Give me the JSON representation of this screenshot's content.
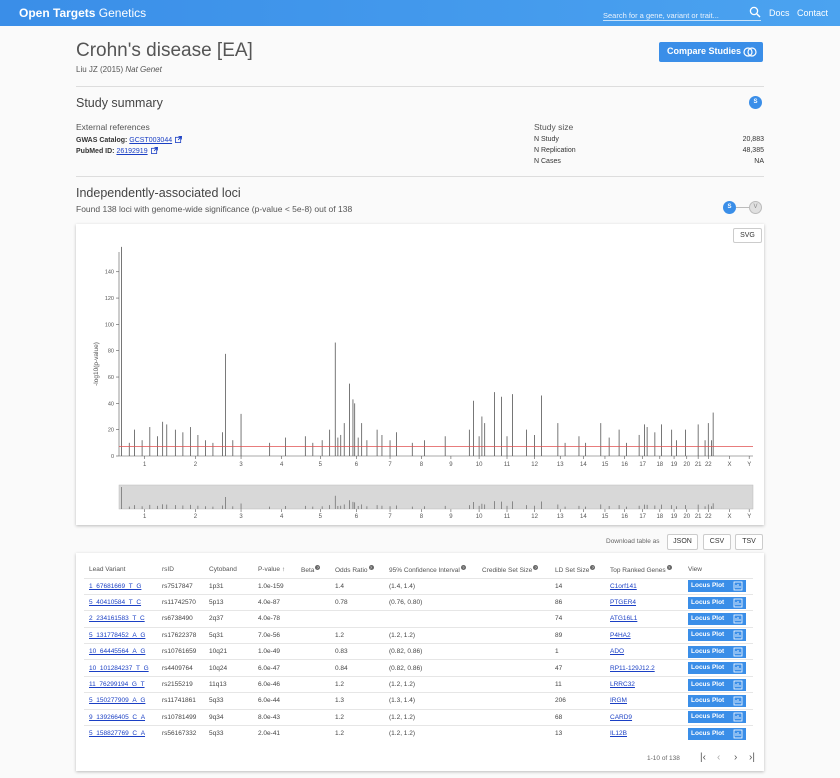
{
  "header": {
    "brand_bold": "Open Targets",
    "brand_light": " Genetics",
    "search_placeholder": "Search for a gene, variant or trait...",
    "nav": [
      "Docs",
      "Contact"
    ]
  },
  "study": {
    "title": "Crohn's disease [EA]",
    "author": "Liu JZ (2015)",
    "journal": "Nat Genet",
    "compare_label": "Compare Studies"
  },
  "summary": {
    "heading": "Study summary",
    "badge": "S",
    "ext_refs_label": "External references",
    "gwas_label": "GWAS Catalog:",
    "gwas_id": "GCST003044",
    "pubmed_label": "PubMed ID:",
    "pubmed_id": "26192919",
    "size_label": "Study size",
    "size_rows": [
      {
        "label": "N Study",
        "value": "20,883"
      },
      {
        "label": "N Replication",
        "value": "48,385"
      },
      {
        "label": "N Cases",
        "value": "NA"
      }
    ]
  },
  "loci": {
    "heading": "Independently-associated loci",
    "subtitle": "Found 138 loci with genome-wide significance (p-value < 5e-8) out of 138",
    "badge_s": "S",
    "badge_v": "V",
    "svg_label": "SVG",
    "download_label": "Download table as",
    "downloads": [
      "JSON",
      "CSV",
      "TSV"
    ]
  },
  "chart_data": {
    "type": "bar",
    "ylabel": "-log10(p-value)",
    "ylim": [
      0,
      155
    ],
    "yticks": [
      0,
      20,
      40,
      60,
      80,
      100,
      120,
      140
    ],
    "threshold": 7.3,
    "xticks": [
      "1",
      "2",
      "3",
      "4",
      "5",
      "6",
      "7",
      "8",
      "9",
      "10",
      "11",
      "12",
      "13",
      "14",
      "15",
      "16",
      "17",
      "18",
      "19",
      "20",
      "21",
      "22",
      "X",
      "Y"
    ],
    "chrom_fraction": [
      0.0,
      0.081,
      0.16,
      0.225,
      0.288,
      0.347,
      0.402,
      0.453,
      0.501,
      0.546,
      0.59,
      0.634,
      0.677,
      0.715,
      0.75,
      0.783,
      0.812,
      0.84,
      0.866,
      0.885,
      0.906,
      0.921,
      0.938,
      0.988,
      1.0
    ],
    "peaks": [
      {
        "chrom": 1,
        "pos": 0.05,
        "value": 158.9
      },
      {
        "chrom": 1,
        "pos": 0.3,
        "value": 20
      },
      {
        "chrom": 1,
        "pos": 0.45,
        "value": 12
      },
      {
        "chrom": 1,
        "pos": 0.6,
        "value": 22
      },
      {
        "chrom": 1,
        "pos": 0.75,
        "value": 15
      },
      {
        "chrom": 1,
        "pos": 0.85,
        "value": 26
      },
      {
        "chrom": 1,
        "pos": 0.93,
        "value": 24
      },
      {
        "chrom": 1,
        "pos": 0.2,
        "value": 10
      },
      {
        "chrom": 2,
        "pos": 0.1,
        "value": 20
      },
      {
        "chrom": 2,
        "pos": 0.25,
        "value": 18
      },
      {
        "chrom": 2,
        "pos": 0.4,
        "value": 22
      },
      {
        "chrom": 2,
        "pos": 0.55,
        "value": 16
      },
      {
        "chrom": 2,
        "pos": 0.7,
        "value": 12
      },
      {
        "chrom": 2,
        "pos": 0.85,
        "value": 10
      },
      {
        "chrom": 3,
        "pos": 0.12,
        "value": 77.6
      },
      {
        "chrom": 3,
        "pos": 0.05,
        "value": 18
      },
      {
        "chrom": 3,
        "pos": 0.3,
        "value": 12
      },
      {
        "chrom": 3,
        "pos": 0.5,
        "value": 32
      },
      {
        "chrom": 4,
        "pos": 0.2,
        "value": 10
      },
      {
        "chrom": 4,
        "pos": 0.6,
        "value": 14
      },
      {
        "chrom": 5,
        "pos": 0.1,
        "value": 15
      },
      {
        "chrom": 5,
        "pos": 0.3,
        "value": 10
      },
      {
        "chrom": 5,
        "pos": 0.55,
        "value": 12
      },
      {
        "chrom": 5,
        "pos": 0.75,
        "value": 20
      },
      {
        "chrom": 5,
        "pos": 0.9,
        "value": 86.2
      },
      {
        "chrom": 5,
        "pos": 0.97,
        "value": 14
      },
      {
        "chrom": 6,
        "pos": 0.05,
        "value": 16
      },
      {
        "chrom": 6,
        "pos": 0.15,
        "value": 25
      },
      {
        "chrom": 6,
        "pos": 0.3,
        "value": 55
      },
      {
        "chrom": 6,
        "pos": 0.4,
        "value": 43
      },
      {
        "chrom": 6,
        "pos": 0.45,
        "value": 40
      },
      {
        "chrom": 6,
        "pos": 0.55,
        "value": 14
      },
      {
        "chrom": 6,
        "pos": 0.65,
        "value": 25
      },
      {
        "chrom": 6,
        "pos": 0.8,
        "value": 12
      },
      {
        "chrom": 7,
        "pos": 0.1,
        "value": 20
      },
      {
        "chrom": 7,
        "pos": 0.25,
        "value": 16
      },
      {
        "chrom": 7,
        "pos": 0.5,
        "value": 12
      },
      {
        "chrom": 7,
        "pos": 0.7,
        "value": 18
      },
      {
        "chrom": 8,
        "pos": 0.2,
        "value": 10
      },
      {
        "chrom": 8,
        "pos": 0.6,
        "value": 12
      },
      {
        "chrom": 9,
        "pos": 0.3,
        "value": 15
      },
      {
        "chrom": 10,
        "pos": 0.15,
        "value": 20
      },
      {
        "chrom": 10,
        "pos": 0.3,
        "value": 42
      },
      {
        "chrom": 10,
        "pos": 0.5,
        "value": 15
      },
      {
        "chrom": 10,
        "pos": 0.6,
        "value": 30
      },
      {
        "chrom": 10,
        "pos": 0.7,
        "value": 25
      },
      {
        "chrom": 11,
        "pos": 0.05,
        "value": 48.5
      },
      {
        "chrom": 11,
        "pos": 0.3,
        "value": 45
      },
      {
        "chrom": 11,
        "pos": 0.5,
        "value": 15
      },
      {
        "chrom": 11,
        "pos": 0.7,
        "value": 47
      },
      {
        "chrom": 12,
        "pos": 0.2,
        "value": 20
      },
      {
        "chrom": 12,
        "pos": 0.5,
        "value": 16
      },
      {
        "chrom": 12,
        "pos": 0.75,
        "value": 46
      },
      {
        "chrom": 13,
        "pos": 0.4,
        "value": 25
      },
      {
        "chrom": 13,
        "pos": 0.7,
        "value": 10
      },
      {
        "chrom": 14,
        "pos": 0.3,
        "value": 15
      },
      {
        "chrom": 14,
        "pos": 0.6,
        "value": 10
      },
      {
        "chrom": 15,
        "pos": 0.3,
        "value": 25
      },
      {
        "chrom": 15,
        "pos": 0.7,
        "value": 14
      },
      {
        "chrom": 16,
        "pos": 0.2,
        "value": 20
      },
      {
        "chrom": 16,
        "pos": 0.6,
        "value": 10
      },
      {
        "chrom": 17,
        "pos": 0.3,
        "value": 16
      },
      {
        "chrom": 17,
        "pos": 0.6,
        "value": 24
      },
      {
        "chrom": 17,
        "pos": 0.75,
        "value": 22
      },
      {
        "chrom": 18,
        "pos": 0.2,
        "value": 18
      },
      {
        "chrom": 18,
        "pos": 0.6,
        "value": 24
      },
      {
        "chrom": 19,
        "pos": 0.3,
        "value": 20
      },
      {
        "chrom": 19,
        "pos": 0.7,
        "value": 12
      },
      {
        "chrom": 20,
        "pos": 0.4,
        "value": 20
      },
      {
        "chrom": 21,
        "pos": 0.5,
        "value": 24
      },
      {
        "chrom": 22,
        "pos": 0.2,
        "value": 12
      },
      {
        "chrom": 22,
        "pos": 0.5,
        "value": 25
      },
      {
        "chrom": 22,
        "pos": 0.8,
        "value": 12
      },
      {
        "chrom": 22,
        "pos": 0.95,
        "value": 33
      }
    ]
  },
  "table": {
    "columns": [
      "Lead Variant",
      "rsID",
      "Cytoband",
      "P-value",
      "Beta",
      "Odds Ratio",
      "95% Confidence Interval",
      "Credible Set Size",
      "LD Set Size",
      "Top Ranked Genes",
      "View"
    ],
    "locus_label": "Locus Plot",
    "rows": [
      [
        "1_67681669_T_G",
        "rs7517847",
        "1p31",
        "1.0e-159",
        "",
        "1.4",
        "(1.4, 1.4)",
        "",
        "14",
        "C1orf141"
      ],
      [
        "5_40410584_T_C",
        "rs11742570",
        "5p13",
        "4.0e-87",
        "",
        "0.78",
        "(0.76, 0.80)",
        "",
        "86",
        "PTGER4"
      ],
      [
        "2_234161583_T_C",
        "rs6738490",
        "2q37",
        "4.0e-78",
        "",
        "",
        "",
        "",
        "74",
        "ATG16L1"
      ],
      [
        "5_131778452_A_G",
        "rs17622378",
        "5q31",
        "7.0e-56",
        "",
        "1.2",
        "(1.2, 1.2)",
        "",
        "89",
        "P4HA2"
      ],
      [
        "10_64445564_A_G",
        "rs10761659",
        "10q21",
        "1.0e-49",
        "",
        "0.83",
        "(0.82, 0.86)",
        "",
        "1",
        "ADO"
      ],
      [
        "10_101284237_T_G",
        "rs4409764",
        "10q24",
        "6.0e-47",
        "",
        "0.84",
        "(0.82, 0.86)",
        "",
        "47",
        "RP11-129J12.2"
      ],
      [
        "11_76299194_G_T",
        "rs2155219",
        "11q13",
        "6.0e-46",
        "",
        "1.2",
        "(1.2, 1.2)",
        "",
        "11",
        "LRRC32"
      ],
      [
        "5_150277909_A_G",
        "rs11741861",
        "5q33",
        "6.0e-44",
        "",
        "1.3",
        "(1.3, 1.4)",
        "",
        "206",
        "IRGM"
      ],
      [
        "9_139266405_C_A",
        "rs10781499",
        "9q34",
        "8.0e-43",
        "",
        "1.2",
        "(1.2, 1.2)",
        "",
        "68",
        "CARD9"
      ],
      [
        "5_158827769_C_A",
        "rs56167332",
        "5q33",
        "2.0e-41",
        "",
        "1.2",
        "(1.2, 1.2)",
        "",
        "13",
        "IL12B"
      ]
    ],
    "pager_text": "1-10 of 138"
  }
}
